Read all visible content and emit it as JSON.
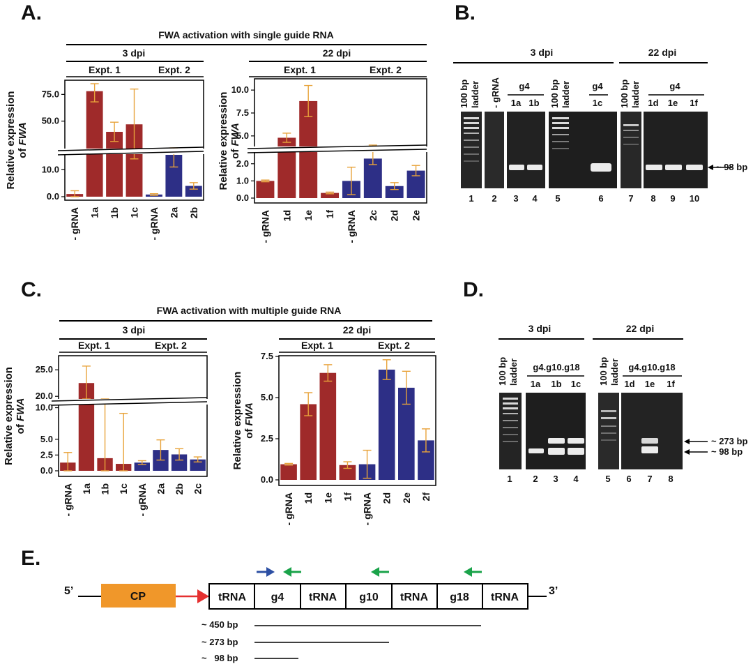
{
  "colors": {
    "red": "#9f2a2a",
    "blue": "#2d2f86",
    "error": "#e8a33a",
    "arrow_blue": "#2c4fa3",
    "arrow_green": "#1aa34a",
    "cp": "#f0972a",
    "promoter": "#e53030"
  },
  "panels": {
    "A": "A.",
    "B": "B.",
    "C": "C.",
    "D": "D.",
    "E": "E."
  },
  "panelA": {
    "title": "FWA activation with single guide RNA",
    "left": {
      "time": "3 dpi",
      "expt1": "Expt. 1",
      "expt2": "Expt. 2"
    },
    "right": {
      "time": "22 dpi",
      "expt1": "Expt. 1",
      "expt2": "Expt. 2"
    }
  },
  "panelC": {
    "title": "FWA activation with multiple guide RNA",
    "left": {
      "time": "3 dpi",
      "expt1": "Expt. 1",
      "expt2": "Expt. 2"
    },
    "right": {
      "time": "22 dpi",
      "expt1": "Expt. 1",
      "expt2": "Expt. 2"
    }
  },
  "ylabel": {
    "line1": "Relative expression",
    "line2_prefix": "of ",
    "gene": "FWA"
  },
  "chart_data": [
    {
      "id": "A1",
      "type": "bar",
      "broken_y": true,
      "categories": [
        "- gRNA",
        "1a",
        "1b",
        "1c",
        "- gRNA",
        "2a",
        "2b"
      ],
      "values": [
        1.0,
        78.0,
        40.0,
        47.0,
        0.8,
        15.5,
        4.0
      ],
      "errors": [
        1.2,
        10,
        9,
        33,
        0.3,
        4.5,
        1.2
      ],
      "groups": [
        "red",
        "red",
        "red",
        "red",
        "blue",
        "blue",
        "blue"
      ],
      "yticks": [
        "0.0",
        "10.0",
        "50.0",
        "75.0"
      ],
      "break_between": [
        15,
        25
      ]
    },
    {
      "id": "A2",
      "type": "bar",
      "broken_y": true,
      "categories": [
        "- gRNA",
        "1d",
        "1e",
        "1f",
        "- gRNA",
        "2c",
        "2d",
        "2e"
      ],
      "values": [
        1.0,
        4.8,
        8.8,
        0.3,
        1.0,
        2.3,
        0.7,
        1.6
      ],
      "errors": [
        0.05,
        0.5,
        1.7,
        0.05,
        0.8,
        0.35,
        0.2,
        0.3
      ],
      "groups": [
        "red",
        "red",
        "red",
        "red",
        "blue",
        "blue",
        "blue",
        "blue"
      ],
      "yticks": [
        "0.0",
        "1.0",
        "2.0",
        "5.0",
        "7.5",
        "10.0"
      ],
      "break_between": [
        2.5,
        4.0
      ]
    },
    {
      "id": "C1",
      "type": "bar",
      "broken_y": true,
      "categories": [
        "- gRNA",
        "1a",
        "1b",
        "1c",
        "- gRNA",
        "2a",
        "2b",
        "2c"
      ],
      "values": [
        1.3,
        22.5,
        2.0,
        1.1,
        1.3,
        3.3,
        2.6,
        1.8
      ],
      "errors": [
        1.6,
        3.2,
        10,
        8,
        0.3,
        1.6,
        0.9,
        0.4
      ],
      "groups": [
        "red",
        "red",
        "red",
        "red",
        "blue",
        "blue",
        "blue",
        "blue"
      ],
      "yticks": [
        "0.0",
        "2.5",
        "5.0",
        "10.0",
        "20.0",
        "25.0"
      ],
      "break_between": [
        10.5,
        19.5
      ]
    },
    {
      "id": "C2",
      "type": "bar",
      "broken_y": false,
      "categories": [
        "- gRNA",
        "1d",
        "1e",
        "1f",
        "- gRNA",
        "2d",
        "2e",
        "2f"
      ],
      "values": [
        0.95,
        4.6,
        6.5,
        0.9,
        0.95,
        6.7,
        5.6,
        2.4
      ],
      "errors": [
        0.05,
        0.7,
        0.5,
        0.2,
        0.85,
        0.6,
        1.0,
        0.7
      ],
      "groups": [
        "red",
        "red",
        "red",
        "red",
        "blue",
        "blue",
        "blue",
        "blue"
      ],
      "yticks": [
        "0.0",
        "2.5",
        "5.0",
        "7.5"
      ],
      "ylim": [
        0,
        7.8
      ]
    }
  ],
  "panelB": {
    "left_time": "3 dpi",
    "right_time": "22 dpi",
    "ladder": [
      "100 bp",
      "ladder"
    ],
    "neg": "- gRNA",
    "guide": "g4",
    "sub_left": [
      "1a",
      "1b"
    ],
    "sub_mid": "1c",
    "sub_right": [
      "1d",
      "1e",
      "1f"
    ],
    "lanes": [
      "1",
      "2",
      "3",
      "4",
      "5",
      "6",
      "7",
      "8",
      "9",
      "10"
    ],
    "band": "~ 98 bp"
  },
  "panelD": {
    "left_time": "3 dpi",
    "right_time": "22 dpi",
    "ladder": [
      "100 bp",
      "ladder"
    ],
    "guide": "g4.g10.g18",
    "sub_left": [
      "1a",
      "1b",
      "1c"
    ],
    "sub_right": [
      "1d",
      "1e",
      "1f"
    ],
    "lanes": [
      "1",
      "2",
      "3",
      "4",
      "5",
      "6",
      "7",
      "8"
    ],
    "band1": "~  273 bp",
    "band2": "~    98 bp"
  },
  "panelE": {
    "five": "5’",
    "three": "3’",
    "cp": "CP",
    "boxes": [
      "tRNA",
      "g4",
      "tRNA",
      "g10",
      "tRNA",
      "g18",
      "tRNA"
    ],
    "sizes": [
      "~ 450 bp",
      "~ 273 bp",
      "~   98 bp"
    ]
  }
}
